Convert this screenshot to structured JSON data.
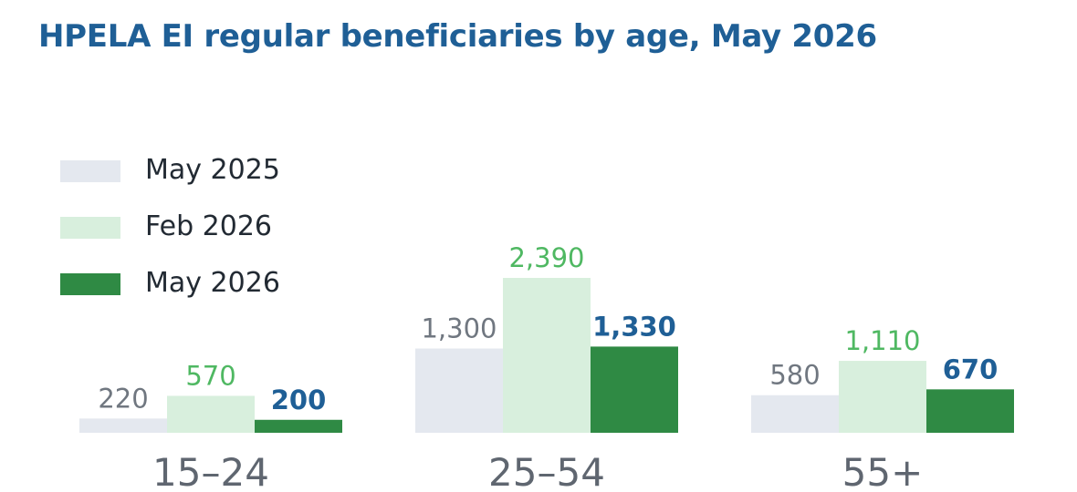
{
  "chart_data": {
    "type": "bar",
    "title": "HPELA EI regular beneficiaries by age, May 2026",
    "categories": [
      "15–24",
      "25–54",
      "55+"
    ],
    "series": [
      {
        "name": "May 2025",
        "values": [
          220,
          1300,
          580
        ],
        "labels": [
          "220",
          "1,300",
          "580"
        ],
        "color": "#e4e8ef",
        "label_color": "#707780"
      },
      {
        "name": "Feb 2026",
        "values": [
          570,
          2390,
          1110
        ],
        "labels": [
          "570",
          "2,390",
          "1,110"
        ],
        "color": "#d8efdd",
        "label_color": "#4fb862"
      },
      {
        "name": "May 2026",
        "values": [
          200,
          1330,
          670
        ],
        "labels": [
          "200",
          "1,330",
          "670"
        ],
        "color": "#2f8a44",
        "label_color": "#1f5f96"
      }
    ],
    "legend_position": "top-left",
    "grid": false,
    "ylim": [
      0,
      2390
    ]
  }
}
